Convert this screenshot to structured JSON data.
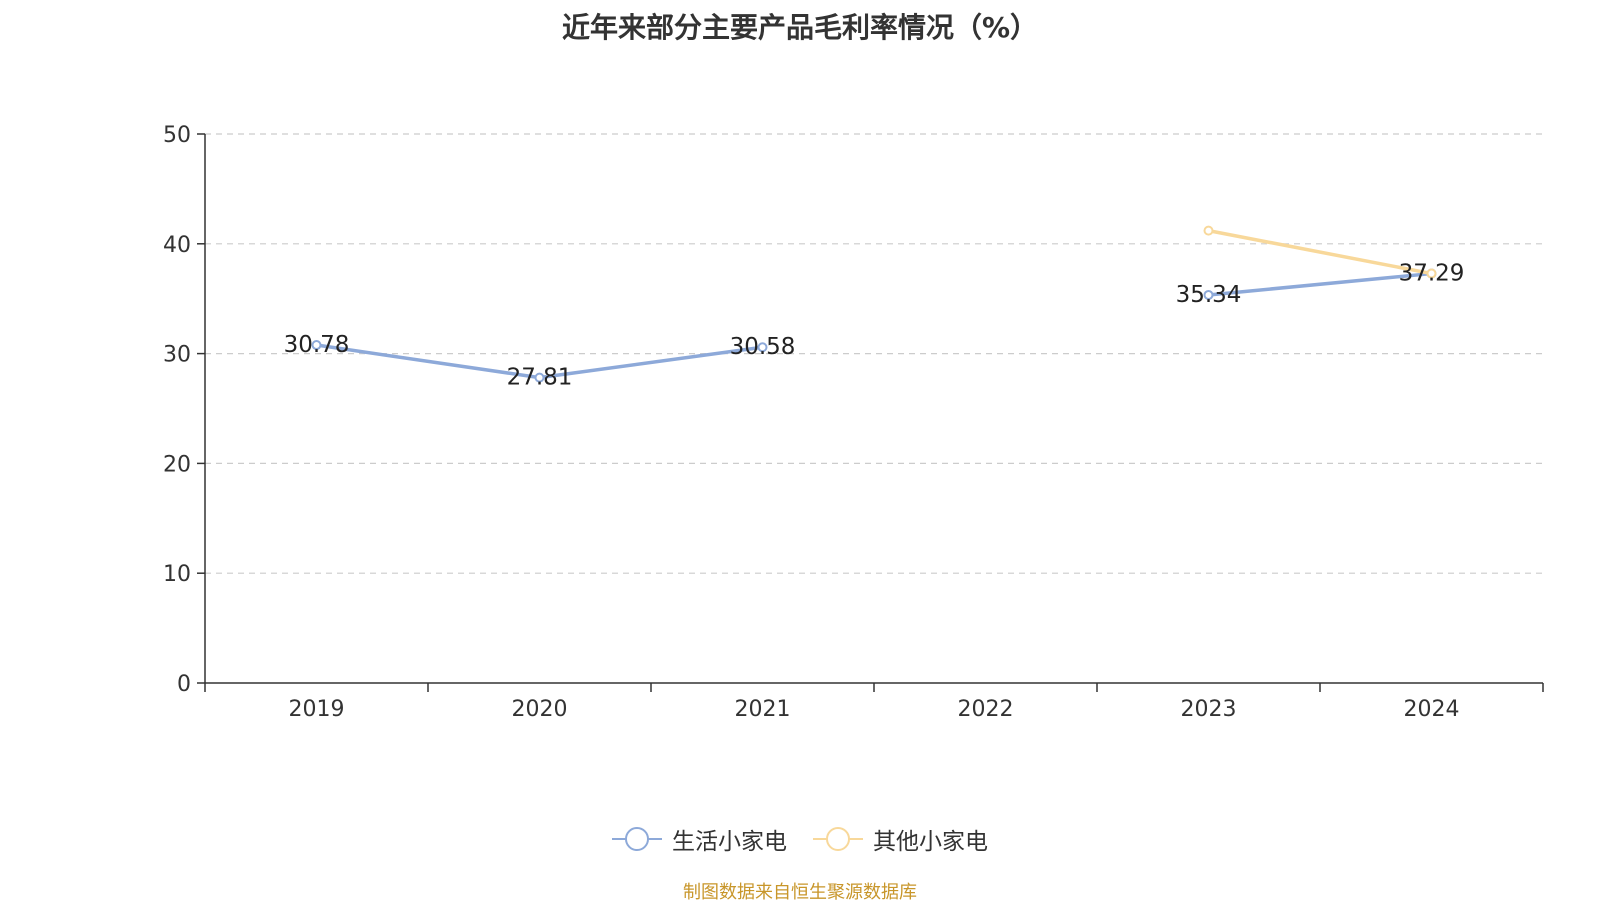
{
  "chart_data": {
    "type": "line",
    "title": "近年来部分主要产品毛利率情况（%）",
    "categories": [
      "2019",
      "2020",
      "2021",
      "2022",
      "2023",
      "2024"
    ],
    "ylim": [
      0,
      50
    ],
    "yticks": [
      "0",
      "10",
      "20",
      "30",
      "40",
      "50"
    ],
    "grid": true,
    "legend_position": "bottom",
    "series": [
      {
        "name": "生活小家电",
        "color": "#8da9d9",
        "values": [
          30.78,
          27.81,
          30.58,
          null,
          35.34,
          37.29
        ],
        "labels": [
          "30.78",
          "27.81",
          "30.58",
          "",
          "35.34",
          ""
        ]
      },
      {
        "name": "其他小家电",
        "color": "#f8d89a",
        "values": [
          null,
          null,
          null,
          null,
          41.2,
          37.29
        ],
        "labels": [
          "",
          "",
          "",
          "",
          "",
          "37.29"
        ]
      }
    ]
  },
  "source": "制图数据来自恒生聚源数据库"
}
